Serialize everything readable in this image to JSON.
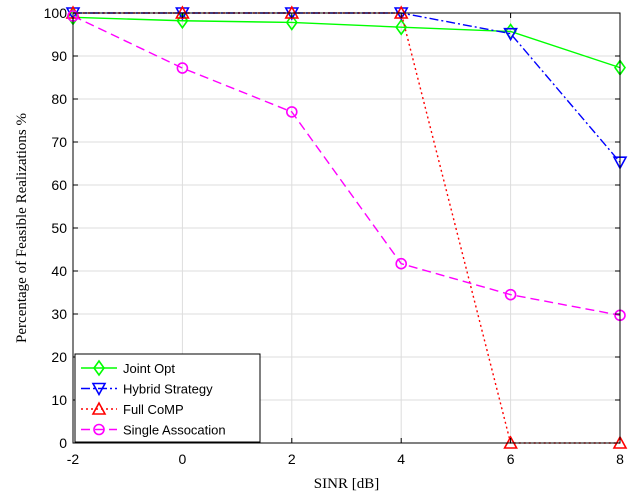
{
  "chart_data": {
    "type": "line",
    "xlabel": "SINR [dB]",
    "ylabel": "Percentage of Feasible Realizations %",
    "xlim": [
      -2,
      8
    ],
    "ylim": [
      0,
      100
    ],
    "xticks": [
      -2,
      0,
      2,
      4,
      6,
      8
    ],
    "yticks": [
      0,
      10,
      20,
      30,
      40,
      50,
      60,
      70,
      80,
      90,
      100
    ],
    "xtick_labels": [
      "-2",
      "0",
      "2",
      "4",
      "6",
      "8"
    ],
    "ytick_labels": [
      "0",
      "10",
      "20",
      "30",
      "40",
      "50",
      "60",
      "70",
      "80",
      "90",
      "100"
    ],
    "grid": true,
    "legend_position": "bottom-left",
    "x": [
      -2,
      0,
      2,
      4,
      6,
      8
    ],
    "series": [
      {
        "name": "Joint Opt",
        "values": [
          99.0,
          98.2,
          97.8,
          96.7,
          95.7,
          87.3
        ],
        "color": "#00ff00",
        "dash": "solid",
        "marker": "diamond"
      },
      {
        "name": "Hybrid Strategy",
        "values": [
          100,
          100,
          100,
          100,
          95.2,
          65.3
        ],
        "color": "#0000ff",
        "dash": "dashdot",
        "marker": "triangle-down"
      },
      {
        "name": "Full CoMP",
        "values": [
          100,
          100,
          100,
          100,
          0,
          0
        ],
        "color": "#ff0000",
        "dash": "dotted",
        "marker": "triangle-up"
      },
      {
        "name": "Single Assocation",
        "values": [
          99.3,
          87.2,
          77.0,
          41.7,
          34.5,
          29.7
        ],
        "color": "#ff00ff",
        "dash": "dashed",
        "marker": "circle"
      }
    ]
  }
}
